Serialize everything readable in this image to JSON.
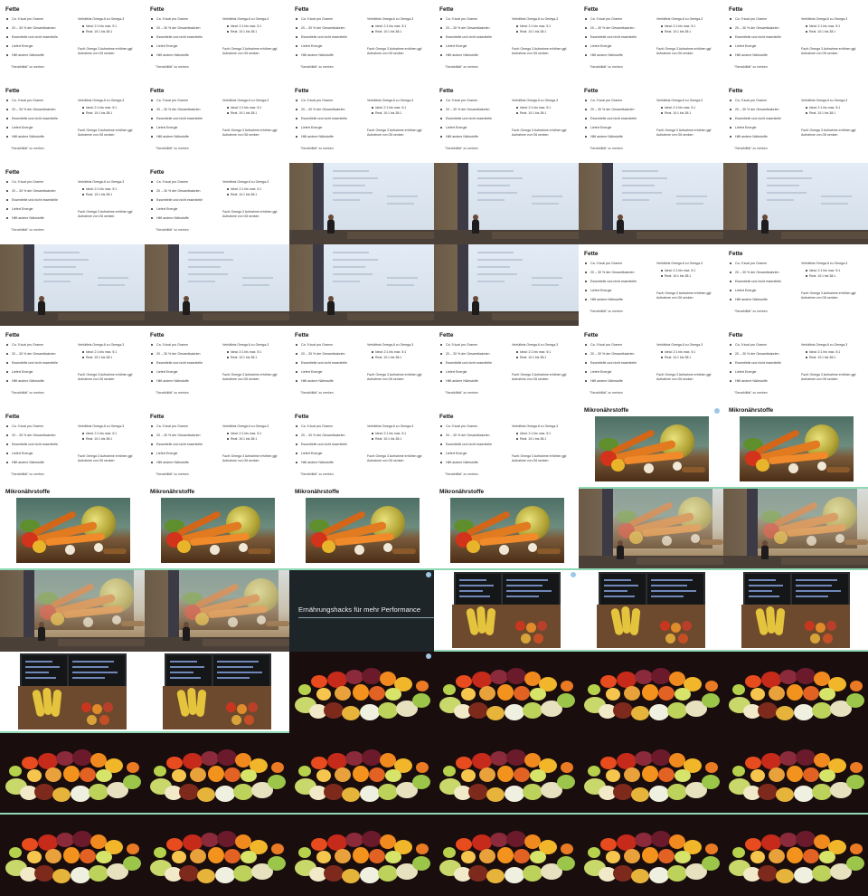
{
  "fette": {
    "title": "Fette",
    "bullets": [
      "Ca. 9 kcal pro Gramm",
      "20 – 30 % der Gesamtkalorien",
      "Essentielle und nicht essentielle",
      "Liefert Energie",
      "Hilft andere Nährstoffe"
    ],
    "ratio_heading": "Verhältnis Omega-6 zu Omega-3",
    "ratio_items": [
      "Ideal: 2:1 bis max. 5:1",
      "Real: 10:1 bis 38:1"
    ],
    "fazit": "Fazit: Omega 3 Aufnahme erhöhen ggf. Aufnahme von O6 senken",
    "footer": "\"Sensibilität\" zu merken"
  },
  "mikro": {
    "title": "Mikronährstoffe"
  },
  "title_slide": {
    "title": "Ernährungshacks für mehr Performance"
  },
  "frame_pattern": [
    "fette",
    "fette",
    "fette",
    "fette",
    "fette",
    "fette",
    "fette",
    "fette",
    "fette",
    "fette",
    "fette",
    "fette",
    "fette",
    "fette",
    "room",
    "room",
    "room",
    "room",
    "room",
    "room",
    "room",
    "room",
    "fette",
    "fette",
    "fette",
    "fette",
    "fette",
    "fette",
    "fette",
    "fette",
    "fette",
    "fette",
    "fette",
    "fette",
    "mikro",
    "mikro",
    "mikro",
    "mikro",
    "mikro",
    "mikro",
    "room-blur",
    "room-blur",
    "room-blur",
    "room-blur",
    "title",
    "monitors",
    "monitors",
    "monitors",
    "monitors",
    "monitors",
    "fruit",
    "fruit",
    "fruit",
    "fruit",
    "fruit",
    "fruit",
    "fruit",
    "fruit",
    "fruit",
    "fruit",
    "fruit",
    "fruit",
    "fruit",
    "fruit",
    "fruit",
    "fruit"
  ],
  "colors": {
    "separator": "#8fd8b4",
    "slide_bg": "#ffffff",
    "title_bg": "#1e2529"
  }
}
